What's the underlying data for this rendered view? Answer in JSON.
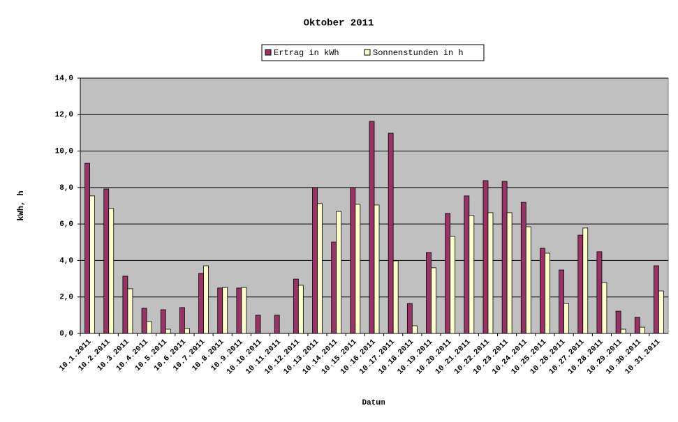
{
  "chart_data": {
    "type": "bar",
    "title": "Oktober 2011",
    "x_label": "Datum",
    "y_label": "kWh, h",
    "categories": [
      "10.1.2011",
      "10.2.2011",
      "10.3.2011",
      "10.4.2011",
      "10.5.2011",
      "10.6.2011",
      "10.7.2011",
      "10.8.2011",
      "10.9.2011",
      "10.10.2011",
      "10.11.2011",
      "10.12.2011",
      "10.13.2011",
      "10.14.2011",
      "10.15.2011",
      "10.16.2011",
      "10.17.2011",
      "10.18.2011",
      "10.19.2011",
      "10.20.2011",
      "10.21.2011",
      "10.22.2011",
      "10.23.2011",
      "10.24.2011",
      "10.25.2011",
      "10.26.2011",
      "10.27.2011",
      "10.28.2011",
      "10.29.2011",
      "10.30.2011",
      "10.31.2011"
    ],
    "series": [
      {
        "name": "Ertrag in kWh",
        "color": "#993366",
        "values": [
          9.33,
          7.92,
          3.14,
          1.38,
          1.3,
          1.42,
          3.29,
          2.49,
          2.49,
          1.0,
          1.0,
          2.98,
          8.0,
          5.01,
          8.0,
          11.63,
          10.98,
          1.64,
          4.44,
          6.58,
          7.54,
          8.38,
          8.34,
          7.19,
          4.67,
          3.48,
          5.39,
          4.48,
          1.22,
          0.88,
          3.71
        ]
      },
      {
        "name": "Sonnenstunden in h",
        "color": "#ffffcc",
        "values": [
          7.54,
          6.85,
          2.45,
          0.65,
          0.23,
          0.27,
          3.71,
          2.52,
          2.52,
          0,
          0,
          2.64,
          7.12,
          6.69,
          7.08,
          7.04,
          3.98,
          0.42,
          3.6,
          5.32,
          6.47,
          6.62,
          6.62,
          5.85,
          4.4,
          1.64,
          5.78,
          2.79,
          0.23,
          0.34,
          2.33
        ]
      }
    ],
    "ylim": [
      0,
      14
    ],
    "yticks": [
      {
        "value": 0,
        "label": "0,0"
      },
      {
        "value": 2,
        "label": "2,0"
      },
      {
        "value": 4,
        "label": "4,0"
      },
      {
        "value": 6,
        "label": "6,0"
      },
      {
        "value": 8,
        "label": "8,0"
      },
      {
        "value": 10,
        "label": "10,0"
      },
      {
        "value": 12,
        "label": "12,0"
      },
      {
        "value": 14,
        "label": "14,0"
      }
    ],
    "grid": true
  }
}
